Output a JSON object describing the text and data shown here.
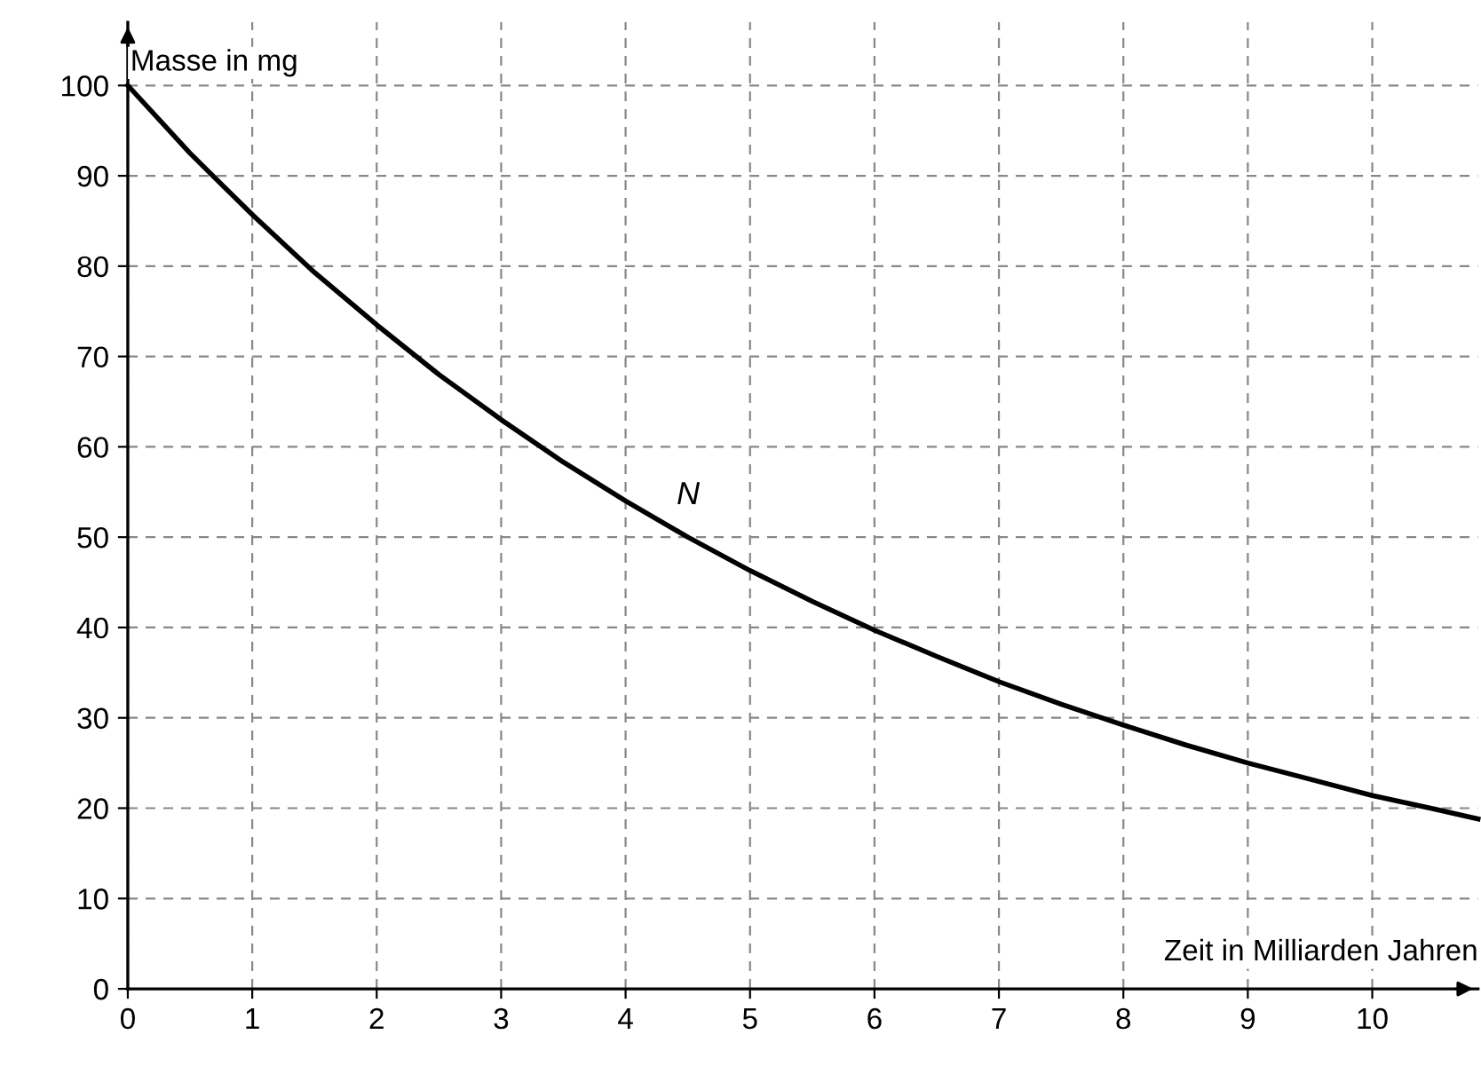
{
  "chart_data": {
    "type": "line",
    "xlabel": "Zeit in Milliarden Jahren",
    "ylabel": "Masse in mg",
    "x": [
      0,
      0.5,
      1,
      1.5,
      2,
      2.5,
      3,
      3.5,
      4,
      4.5,
      5,
      5.5,
      6,
      6.5,
      7,
      7.5,
      8,
      8.5,
      9,
      9.5,
      10,
      10.5,
      10.85
    ],
    "series": [
      {
        "color": "#000000",
        "values": [
          100,
          92.5,
          85.7,
          79.3,
          73.5,
          68,
          63,
          58.3,
          54,
          50,
          46.3,
          42.9,
          39.7,
          36.8,
          34,
          31.5,
          29.2,
          27,
          25,
          23.2,
          21.4,
          19.9,
          18.8
        ]
      }
    ],
    "annotations": [
      "N"
    ],
    "xlim": [
      0,
      10.85
    ],
    "ylim": [
      0,
      107
    ],
    "xticks": [
      0,
      1,
      2,
      3,
      4,
      5,
      6,
      7,
      8,
      9,
      10
    ],
    "yticks": [
      0,
      10,
      20,
      30,
      40,
      50,
      60,
      70,
      80,
      90,
      100
    ],
    "grid": true,
    "line_style": "solid",
    "marker": "none"
  }
}
